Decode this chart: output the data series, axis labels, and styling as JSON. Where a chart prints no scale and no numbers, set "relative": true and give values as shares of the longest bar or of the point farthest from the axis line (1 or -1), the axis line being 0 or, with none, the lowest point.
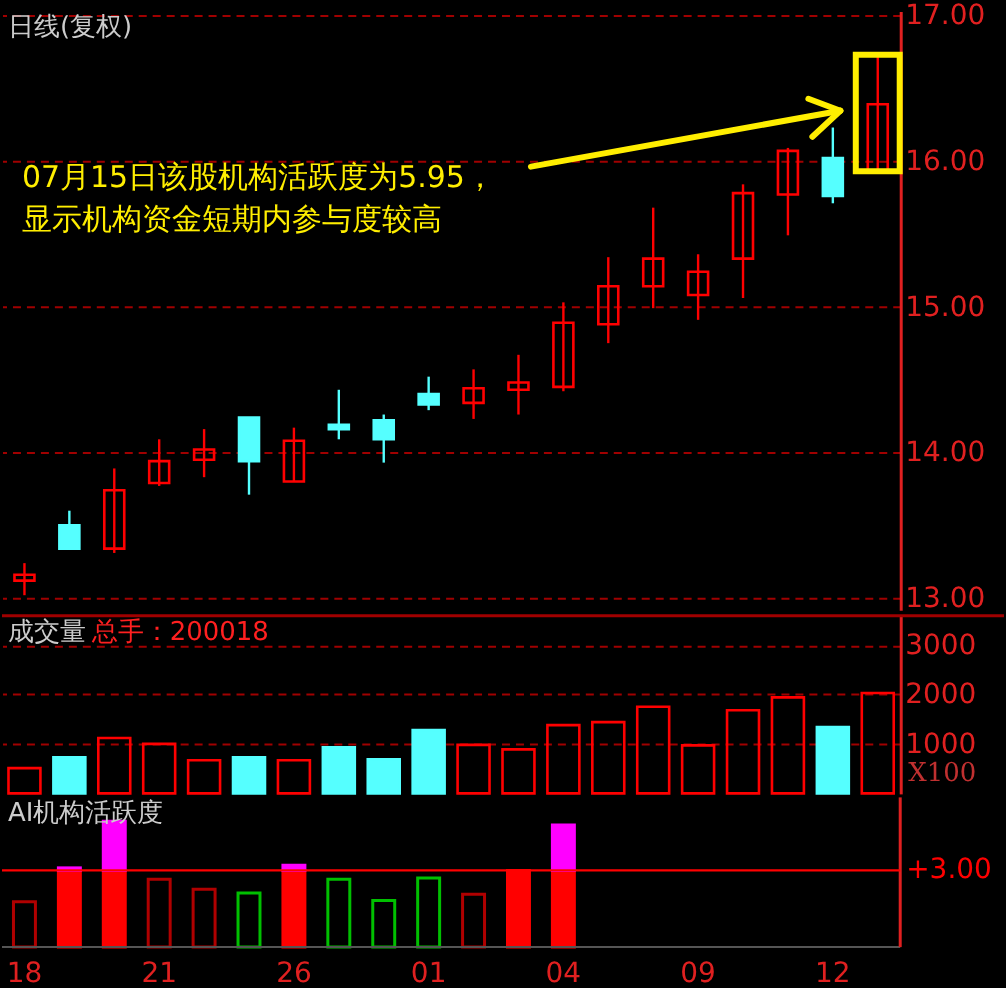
{
  "chart_data": [
    {
      "type": "candlestick",
      "title": "日线(复权)",
      "categories": [
        "18",
        null,
        null,
        "21",
        null,
        null,
        "26",
        null,
        null,
        "01",
        null,
        null,
        "04",
        null,
        null,
        "09",
        null,
        null,
        "12",
        null
      ],
      "ohlc": [
        [
          13.12,
          13.24,
          13.02,
          13.16
        ],
        [
          13.5,
          13.6,
          13.34,
          13.34
        ],
        [
          13.34,
          13.89,
          13.31,
          13.74
        ],
        [
          13.79,
          14.09,
          13.77,
          13.94
        ],
        [
          13.95,
          14.16,
          13.83,
          14.02
        ],
        [
          14.24,
          14.24,
          13.71,
          13.94
        ],
        [
          13.8,
          14.17,
          13.8,
          14.08
        ],
        [
          14.19,
          14.43,
          14.09,
          14.16
        ],
        [
          14.22,
          14.26,
          13.93,
          14.09
        ],
        [
          14.4,
          14.52,
          14.29,
          14.33
        ],
        [
          14.34,
          14.57,
          14.23,
          14.44
        ],
        [
          14.43,
          14.67,
          14.26,
          14.48
        ],
        [
          14.45,
          15.03,
          14.42,
          14.89
        ],
        [
          14.88,
          15.34,
          14.75,
          15.14
        ],
        [
          15.14,
          15.68,
          14.99,
          15.33
        ],
        [
          15.08,
          15.36,
          14.91,
          15.24
        ],
        [
          15.33,
          15.84,
          15.06,
          15.78
        ],
        [
          15.77,
          16.09,
          15.49,
          16.07
        ],
        [
          16.02,
          16.23,
          15.71,
          15.76
        ],
        [
          15.93,
          16.73,
          15.93,
          16.39
        ]
      ],
      "colors": [
        "#ff0000",
        "#55ffff",
        "#ff0000",
        "#ff0000",
        "#ff0000",
        "#55ffff",
        "#ff0000",
        "#55ffff",
        "#55ffff",
        "#55ffff",
        "#ff0000",
        "#ff0000",
        "#ff0000",
        "#ff0000",
        "#ff0000",
        "#ff0000",
        "#ff0000",
        "#ff0000",
        "#55ffff",
        "#ff0000"
      ],
      "ylim": [
        12.92,
        17.03
      ],
      "yticks": [
        {
          "value": 13,
          "label": "13.00"
        },
        {
          "value": 14,
          "label": "14.00"
        },
        {
          "value": 15,
          "label": "15.00"
        },
        {
          "value": 16,
          "label": "16.00"
        },
        {
          "value": 17,
          "label": "17.00"
        }
      ],
      "grid": "y",
      "tick_labels": "y",
      "annotations": [
        "07月15日该股机构活跃度为5.95，显示机构资金短期内参与度较高"
      ]
    },
    {
      "type": "bar",
      "title": "成交量",
      "categories": [
        "18",
        null,
        null,
        "21",
        null,
        null,
        "26",
        null,
        null,
        "01",
        null,
        null,
        "04",
        null,
        null,
        "09",
        null,
        null,
        "12",
        null
      ],
      "values": [
        510,
        730,
        1120,
        1000,
        670,
        730,
        670,
        930,
        690,
        1280,
        980,
        890,
        1380,
        1440,
        1750,
        970,
        1680,
        1940,
        1340,
        2030
      ],
      "colors": [
        "#ff0000",
        "#55ffff",
        "#ff0000",
        "#ff0000",
        "#ff0000",
        "#55ffff",
        "#ff0000",
        "#55ffff",
        "#55ffff",
        "#55ffff",
        "#ff0000",
        "#ff0000",
        "#ff0000",
        "#ff0000",
        "#ff0000",
        "#ff0000",
        "#ff0000",
        "#ff0000",
        "#55ffff",
        "#ff0000"
      ],
      "ylim": [
        0,
        3590
      ],
      "yticks": [
        1000,
        2000,
        3000
      ],
      "ylabel": "X100",
      "grid": "y",
      "tick_labels": "y",
      "annotations": [
        "总手：200018"
      ]
    },
    {
      "type": "bar",
      "title": "AI机构活跃度",
      "stacked": true,
      "relative": true,
      "categories": [
        "18",
        null,
        null,
        "21",
        null,
        null,
        "26",
        null,
        null,
        "01",
        null,
        null,
        "04",
        null,
        null,
        "09",
        null,
        null,
        "12",
        null
      ],
      "series": [
        {
          "colors": [
            "#b00000",
            "#ff0000",
            "#ff0000",
            "#b00000",
            "#b00000",
            "#00c000",
            "#ff0000",
            "#00c000",
            "#00c000",
            "#00c000",
            "#b00000",
            "#ff0000",
            "#ff0000",
            null,
            null,
            null,
            null,
            null,
            null,
            null
          ],
          "values": [
            0.36,
            0.61,
            0.61,
            0.54,
            0.46,
            0.43,
            0.61,
            0.54,
            0.37,
            0.55,
            0.42,
            0.61,
            0.61,
            null,
            null,
            null,
            null,
            null,
            null,
            null
          ]
        },
        {
          "color": "#ff00ff",
          "values": [
            null,
            0.02,
            0.39,
            null,
            null,
            null,
            0.04,
            null,
            null,
            null,
            null,
            null,
            0.36,
            null,
            null,
            null,
            null,
            null,
            null,
            null
          ]
        }
      ],
      "ref_lines": [
        {
          "axis": "y",
          "value": 0.61,
          "color": "#ff0000"
        }
      ],
      "annotations": [
        "+3.00"
      ]
    }
  ]
}
